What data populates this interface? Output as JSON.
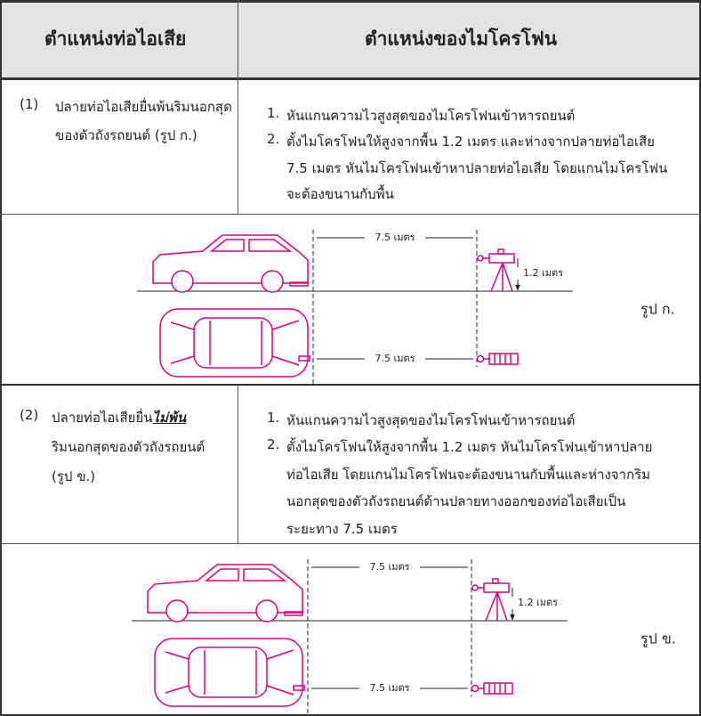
{
  "header": {
    "left": "ตำแหน่งท่อไอเสีย",
    "right": "ตำแหน่งของไมโครโฟน"
  },
  "rows": [
    {
      "left": {
        "label": "(1)",
        "lines": [
          "ปลายท่อไอเสียยื่นพ้นริมนอกสุด",
          "ของตัวถังรถยนต์ (รูป ก.)"
        ]
      },
      "right": [
        {
          "number": "1.",
          "lines": [
            "หันแกนความไวสูงสุดของไมโครโฟนเข้าหารถยนต์"
          ]
        },
        {
          "number": "2.",
          "lines": [
            "ตั้งไมโครโฟนให้สูงจากพื้น 1.2 เมตร และห่างจากปลายท่อไอเสีย",
            "7.5 เมตร หันไมโครโฟนเข้าหาปลายท่อไอเสีย โดยแกนไมโครโฟน",
            "จะต้องขนานกับพื้น"
          ]
        }
      ],
      "figure": {
        "distance_top": "7.5 เมตร",
        "height": "1.2 เมตร",
        "distance_bottom": "7.5 เมตร",
        "caption": "รูป ก."
      }
    },
    {
      "left": {
        "label": "(2)",
        "first": "ปลายท่อไอเสียยื่น",
        "emphasis": "ไม่พ้น",
        "lines": [
          "ริมนอกสุดของตัวถังรถยนต์",
          "(รูป ข.)"
        ]
      },
      "right": [
        {
          "number": "1.",
          "lines": [
            "หันแกนความไวสูงสุดของไมโครโฟนเข้าหารถยนต์"
          ]
        },
        {
          "number": "2.",
          "lines": [
            "ตั้งไมโครโฟนให้สูงจากพื้น 1.2 เมตร หันไมโครโฟนเข้าหาปลาย",
            "ท่อไอเสีย โดยแกนไมโครโฟนจะต้องขนานกับพื้นและห่างจากริม",
            "นอกสุดของตัวถังรถยนต์ด้านปลายทางออกของท่อไอเสียเป็น",
            "ระยะทาง 7.5 เมตร"
          ]
        }
      ],
      "figure": {
        "distance_top": "7.5 เมตร",
        "height": "1.2 เมตร",
        "distance_bottom": "7.5 เมตร",
        "caption": "รูป ข."
      }
    }
  ]
}
